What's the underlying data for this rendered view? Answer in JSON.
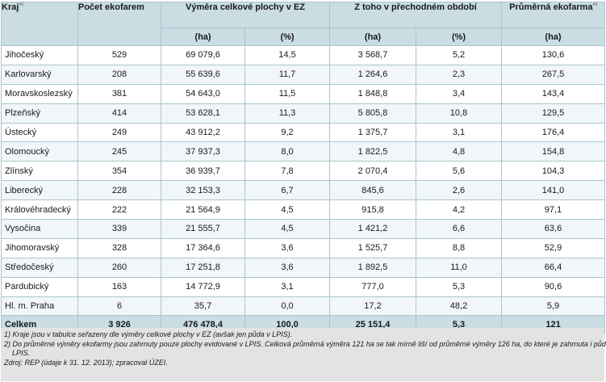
{
  "header": {
    "kraj": "Kraj",
    "kraj_sup": "1)",
    "pocet": "Počet ekofarem",
    "vymera": "Výměra celkové plochy v EZ",
    "ztoho": "Z toho v přechodném období",
    "prumerna": "Průměrná ekofarma",
    "prumerna_sup": "2)",
    "units": [
      "(ha)",
      "(%)",
      "(ha)",
      "(%)",
      "(ha)"
    ]
  },
  "rows": [
    {
      "kraj": "Jihočeský",
      "pocet": "529",
      "ha": "69 079,6",
      "pct": "14,5",
      "po_ha": "3 568,7",
      "po_pct": "5,2",
      "avg": "130,6"
    },
    {
      "kraj": "Karlovarský",
      "pocet": "208",
      "ha": "55 639,6",
      "pct": "11,7",
      "po_ha": "1 264,6",
      "po_pct": "2,3",
      "avg": "267,5"
    },
    {
      "kraj": "Moravskoslezský",
      "pocet": "381",
      "ha": "54 643,0",
      "pct": "11,5",
      "po_ha": "1 848,8",
      "po_pct": "3,4",
      "avg": "143,4"
    },
    {
      "kraj": "Plzeňský",
      "pocet": "414",
      "ha": "53 628,1",
      "pct": "11,3",
      "po_ha": "5 805,8",
      "po_pct": "10,8",
      "avg": "129,5"
    },
    {
      "kraj": "Ústecký",
      "pocet": "249",
      "ha": "43 912,2",
      "pct": "9,2",
      "po_ha": "1 375,7",
      "po_pct": "3,1",
      "avg": "176,4"
    },
    {
      "kraj": "Olomoucký",
      "pocet": "245",
      "ha": "37 937,3",
      "pct": "8,0",
      "po_ha": "1 822,5",
      "po_pct": "4,8",
      "avg": "154,8"
    },
    {
      "kraj": "Zlínský",
      "pocet": "354",
      "ha": "36 939,7",
      "pct": "7,8",
      "po_ha": "2 070,4",
      "po_pct": "5,6",
      "avg": "104,3"
    },
    {
      "kraj": "Liberecký",
      "pocet": "228",
      "ha": "32 153,3",
      "pct": "6,7",
      "po_ha": "845,6",
      "po_pct": "2,6",
      "avg": "141,0"
    },
    {
      "kraj": "Královéhradecký",
      "pocet": "222",
      "ha": "21 564,9",
      "pct": "4,5",
      "po_ha": "915,8",
      "po_pct": "4,2",
      "avg": "97,1"
    },
    {
      "kraj": "Vysočina",
      "pocet": "339",
      "ha": "21 555,7",
      "pct": "4,5",
      "po_ha": "1 421,2",
      "po_pct": "6,6",
      "avg": "63,6"
    },
    {
      "kraj": "Jihomoravský",
      "pocet": "328",
      "ha": "17 364,6",
      "pct": "3,6",
      "po_ha": "1 525,7",
      "po_pct": "8,8",
      "avg": "52,9"
    },
    {
      "kraj": "Středočeský",
      "pocet": "260",
      "ha": "17 251,8",
      "pct": "3,6",
      "po_ha": "1 892,5",
      "po_pct": "11,0",
      "avg": "66,4"
    },
    {
      "kraj": "Pardubický",
      "pocet": "163",
      "ha": "14 772,9",
      "pct": "3,1",
      "po_ha": "777,0",
      "po_pct": "5,3",
      "avg": "90,6"
    },
    {
      "kraj": "Hl. m. Praha",
      "pocet": "6",
      "ha": "35,7",
      "pct": "0,0",
      "po_ha": "17,2",
      "po_pct": "48,2",
      "avg": "5,9"
    }
  ],
  "total": {
    "kraj": "Celkem",
    "pocet": "3 926",
    "ha": "476 478,4",
    "pct": "100,0",
    "po_ha": "25 151,4",
    "po_pct": "5,3",
    "avg": "121"
  },
  "notes": {
    "n1": "1) Kraje jsou v tabulce seřazeny dle výměry celkové plochy v EZ (avšak jen půda v LPIS).",
    "n2a": "2) Do průměrné výměry ekofarmy jsou zahrnuty pouze plochy evidované v LPIS. Celková průměrná výměra 121 ha se tak mírně liší od průměrné výměry 126 ha, do které je zahrnuta i půda mimo",
    "n2b": "LPIS.",
    "source": "Zdroj: REP (údaje k 31. 12. 2013); zpracoval ÚZEI."
  },
  "colors": {
    "header_bg": "#c9dde3",
    "border": "#a9c6cf",
    "notes_bg": "#e3e3e3",
    "row_alt": "#f1f6f8"
  }
}
